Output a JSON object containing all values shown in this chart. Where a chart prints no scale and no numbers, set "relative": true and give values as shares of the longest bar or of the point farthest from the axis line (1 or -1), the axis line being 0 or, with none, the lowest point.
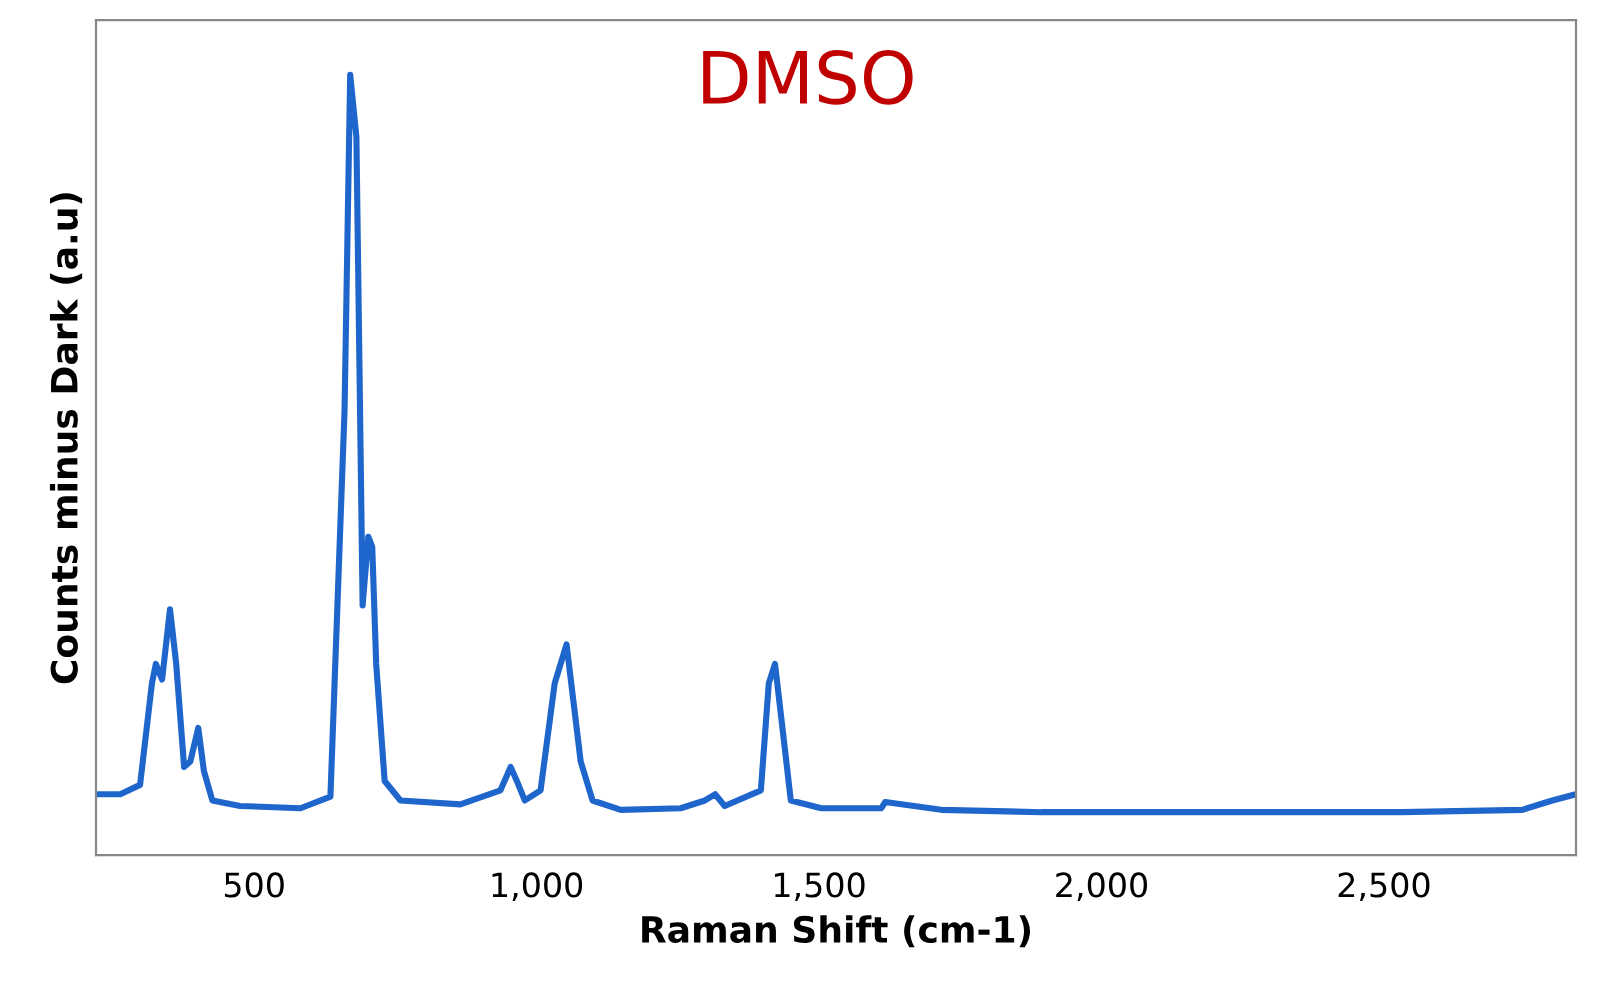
{
  "chart_data": {
    "type": "line",
    "relative": true,
    "xlabel": "Raman Shift (cm-1)",
    "ylabel": "Counts minus Dark (a.u)",
    "annotations": [
      "DMSO"
    ],
    "x": [
      220,
      263,
      298,
      319,
      326,
      337,
      351,
      362,
      376,
      387,
      401,
      411,
      426,
      475,
      582,
      635,
      660,
      670,
      681,
      692,
      702,
      709,
      716,
      731,
      759,
      865,
      936,
      954,
      965,
      979,
      1007,
      1032,
      1053,
      1078,
      1099,
      1149,
      1255,
      1298,
      1316,
      1333,
      1397,
      1411,
      1422,
      1432,
      1450,
      1504,
      1610,
      1617,
      1716,
      1894,
      2177,
      2532,
      2745,
      2798,
      2840
    ],
    "series": [
      {
        "color": "#1f66cc",
        "values": [
          0.078,
          0.078,
          0.09,
          0.22,
          0.245,
          0.225,
          0.315,
          0.245,
          0.113,
          0.12,
          0.163,
          0.108,
          0.07,
          0.063,
          0.06,
          0.075,
          0.57,
          1.0,
          0.92,
          0.32,
          0.408,
          0.395,
          0.245,
          0.095,
          0.07,
          0.065,
          0.083,
          0.113,
          0.095,
          0.07,
          0.083,
          0.22,
          0.27,
          0.12,
          0.07,
          0.058,
          0.06,
          0.07,
          0.078,
          0.063,
          0.083,
          0.22,
          0.245,
          0.183,
          0.07,
          0.06,
          0.06,
          0.068,
          0.058,
          0.055,
          0.055,
          0.055,
          0.058,
          0.07,
          0.078
        ]
      }
    ],
    "xlim": [
      220,
      2840
    ],
    "xticks": [
      500,
      {
        "value": 1000,
        "label": "1,000"
      },
      {
        "value": 1500,
        "label": "1,500"
      },
      {
        "value": 2000,
        "label": "2,000"
      },
      {
        "value": 2500,
        "label": "2,500"
      }
    ],
    "grid": false,
    "marker": "none",
    "line_style": "solid"
  }
}
